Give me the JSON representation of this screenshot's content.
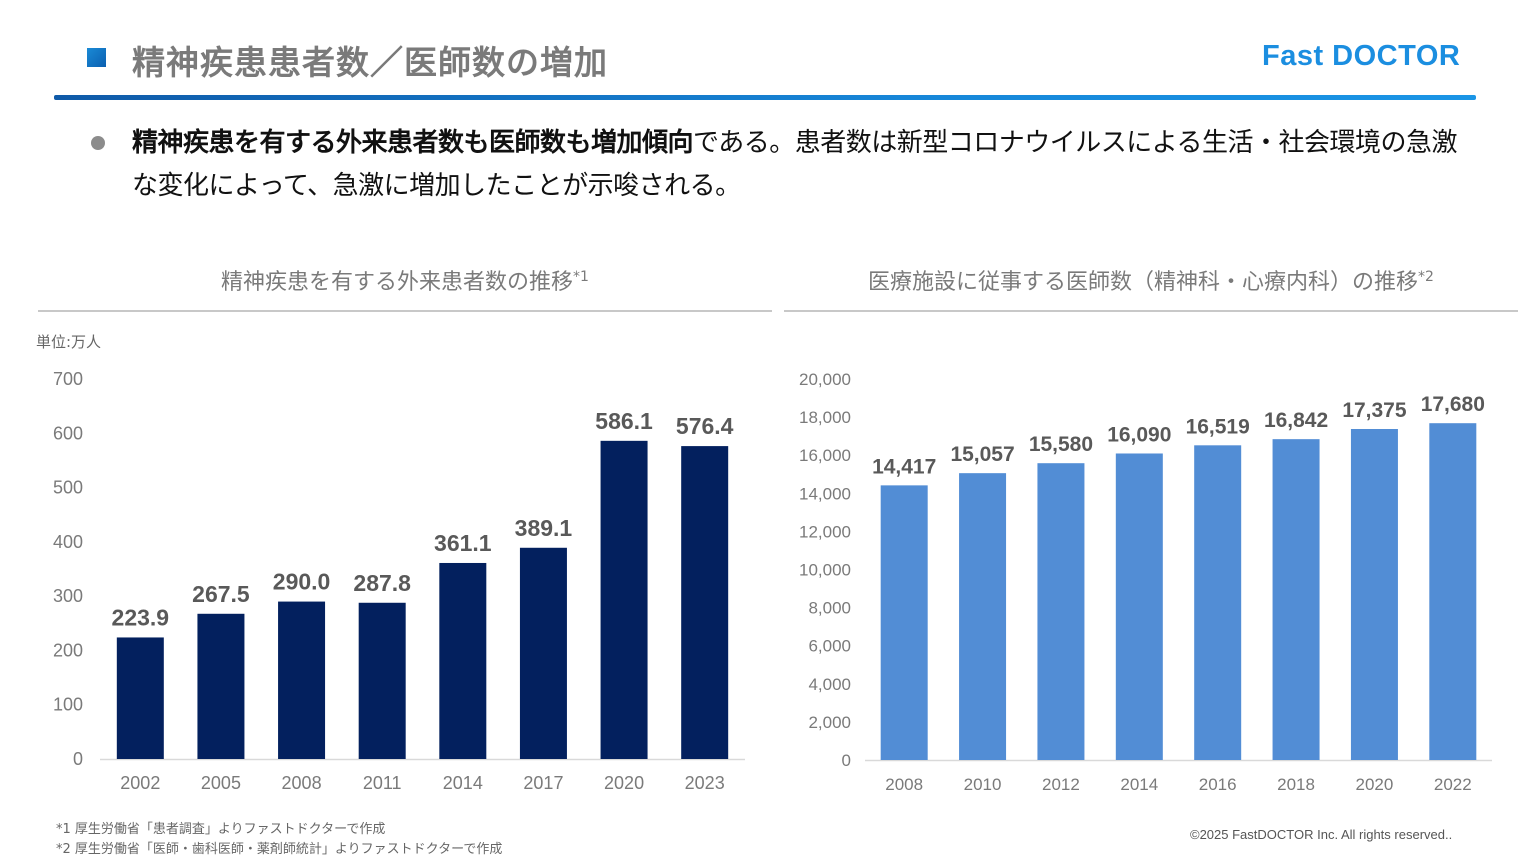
{
  "header": {
    "title": "精神疾患患者数／医師数の増加",
    "logo": "Fast DOCTOR",
    "accent_color": "#1b8ee0"
  },
  "lead": {
    "bold_text": "精神疾患を有する外来患者数も医師数も増加傾向",
    "rest_text": "である。患者数は新型コロナウイルスによる生活・社会環境の急激な変化によって、急激に増加したことが示唆される。"
  },
  "chart_data": [
    {
      "type": "bar",
      "title": "精神疾患を有する外来患者数の推移",
      "title_note": "*1",
      "unit_label": "単位:万人",
      "xlabel": "",
      "ylabel": "",
      "categories": [
        "2002",
        "2005",
        "2008",
        "2011",
        "2014",
        "2017",
        "2020",
        "2023"
      ],
      "values": [
        223.9,
        267.5,
        290.0,
        287.8,
        361.1,
        389.1,
        586.1,
        576.4
      ],
      "value_labels": [
        "223.9",
        "267.5",
        "290.0",
        "287.8",
        "361.1",
        "389.1",
        "586.1",
        "576.4"
      ],
      "ylim": [
        0,
        700
      ],
      "yticks": [
        0,
        100,
        200,
        300,
        400,
        500,
        600,
        700
      ],
      "ytick_labels": [
        "0",
        "100",
        "200",
        "300",
        "400",
        "500",
        "600",
        "700"
      ],
      "bar_color": "#03205e",
      "grid": false
    },
    {
      "type": "bar",
      "title": "医療施設に従事する医師数（精神科・心療内科）の推移",
      "title_note": "*2",
      "xlabel": "",
      "ylabel": "",
      "categories": [
        "2008",
        "2010",
        "2012",
        "2014",
        "2016",
        "2018",
        "2020",
        "2022"
      ],
      "values": [
        14417,
        15057,
        15580,
        16090,
        16519,
        16842,
        17375,
        17680
      ],
      "value_labels": [
        "14,417",
        "15,057",
        "15,580",
        "16,090",
        "16,519",
        "16,842",
        "17,375",
        "17,680"
      ],
      "ylim": [
        0,
        20000
      ],
      "yticks": [
        0,
        2000,
        4000,
        6000,
        8000,
        10000,
        12000,
        14000,
        16000,
        18000,
        20000
      ],
      "ytick_labels": [
        "0",
        "2,000",
        "4,000",
        "6,000",
        "8,000",
        "10,000",
        "12,000",
        "14,000",
        "16,000",
        "18,000",
        "20,000"
      ],
      "bar_color": "#528dd5",
      "grid": false
    }
  ],
  "footnotes": [
    "*1 厚生労働省「患者調査」よりファストドクターで作成",
    "*2 厚生労働省「医師・歯科医師・薬剤師統計」よりファストドクターで作成"
  ],
  "copyright": "©2025 FastDOCTOR Inc. All rights reserved.."
}
